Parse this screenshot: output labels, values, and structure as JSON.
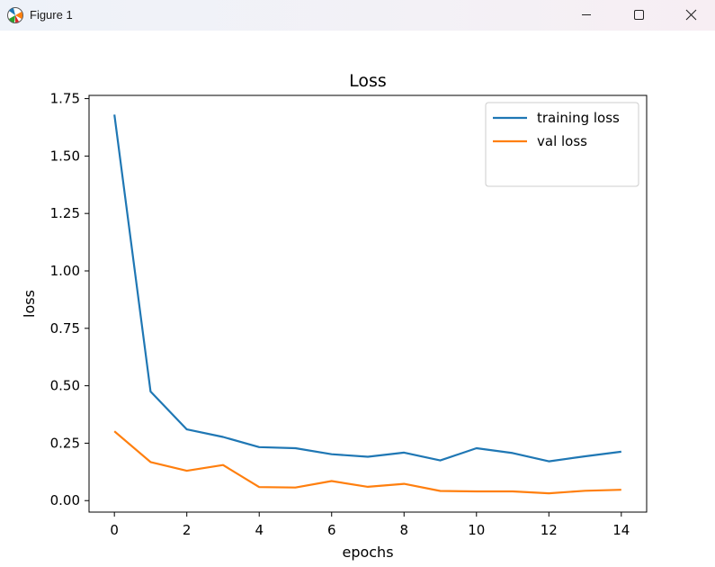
{
  "window": {
    "title": "Figure 1",
    "icon": "matplotlib-icon",
    "controls": [
      "minimize-icon",
      "maximize-icon",
      "close-icon"
    ]
  },
  "chart_data": {
    "type": "line",
    "title": "Loss",
    "xlabel": "epochs",
    "ylabel": "loss",
    "x": [
      0,
      1,
      2,
      3,
      4,
      5,
      6,
      7,
      8,
      9,
      10,
      11,
      12,
      13,
      14
    ],
    "series": [
      {
        "name": "training loss",
        "color": "#1f77b4",
        "values": [
          1.68,
          0.475,
          0.31,
          0.277,
          0.233,
          0.228,
          0.202,
          0.191,
          0.209,
          0.175,
          0.228,
          0.207,
          0.171,
          0.193,
          0.213
        ]
      },
      {
        "name": "val loss",
        "color": "#ff7f0e",
        "values": [
          0.302,
          0.168,
          0.13,
          0.155,
          0.059,
          0.057,
          0.085,
          0.06,
          0.073,
          0.042,
          0.04,
          0.04,
          0.032,
          0.043,
          0.047
        ]
      }
    ],
    "xlim": [
      -0.7,
      14.7
    ],
    "ylim": [
      -0.05,
      1.764
    ],
    "xticks": [
      0,
      2,
      4,
      6,
      8,
      10,
      12,
      14
    ],
    "xtick_labels": [
      "0",
      "2",
      "4",
      "6",
      "8",
      "10",
      "12",
      "14"
    ],
    "yticks": [
      0.0,
      0.25,
      0.5,
      0.75,
      1.0,
      1.25,
      1.5,
      1.75
    ],
    "ytick_labels": [
      "0.00",
      "0.25",
      "0.50",
      "0.75",
      "1.00",
      "1.25",
      "1.50",
      "1.75"
    ],
    "grid": false,
    "legend_position": "upper right"
  }
}
